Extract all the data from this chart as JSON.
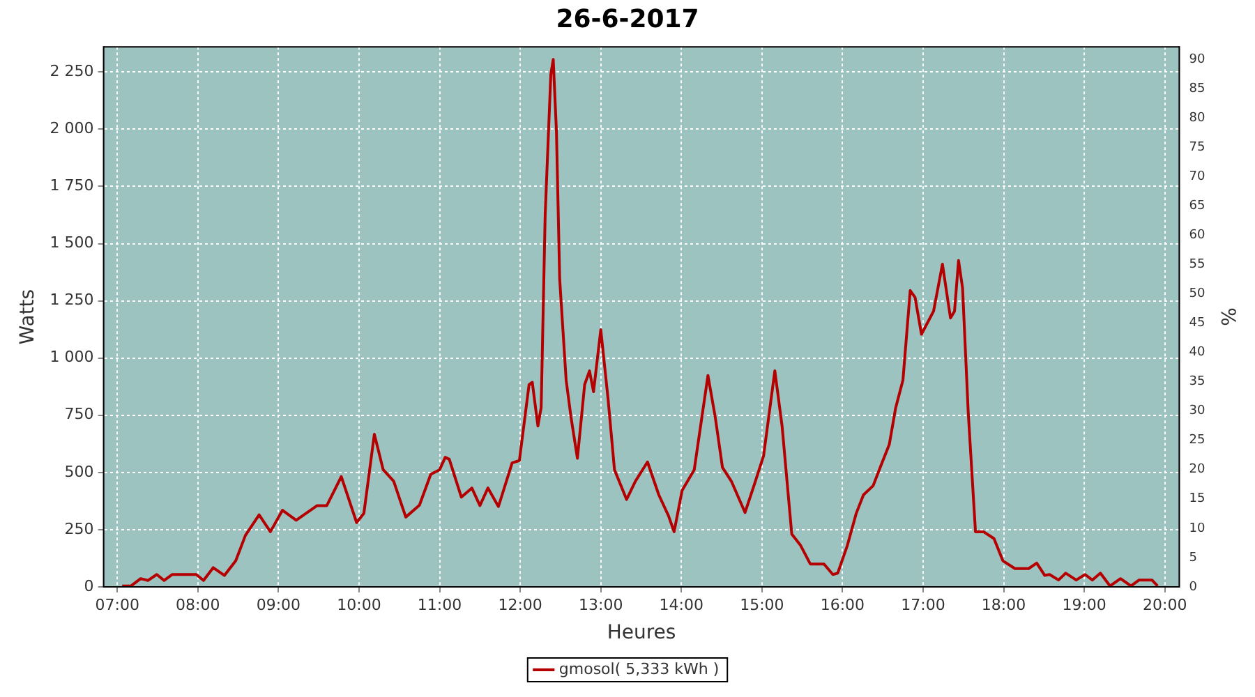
{
  "chart_data": {
    "type": "line",
    "title": "26-6-2017",
    "xlabel": "Heures",
    "ylabel": "Watts",
    "y2label": "%",
    "xlim": [
      6.83,
      20.18
    ],
    "xticks": [
      {
        "value": 7,
        "label": "07:00"
      },
      {
        "value": 8,
        "label": "08:00"
      },
      {
        "value": 9,
        "label": "09:00"
      },
      {
        "value": 10,
        "label": "10:00"
      },
      {
        "value": 11,
        "label": "11:00"
      },
      {
        "value": 12,
        "label": "12:00"
      },
      {
        "value": 13,
        "label": "13:00"
      },
      {
        "value": 14,
        "label": "14:00"
      },
      {
        "value": 15,
        "label": "15:00"
      },
      {
        "value": 16,
        "label": "16:00"
      },
      {
        "value": 17,
        "label": "17:00"
      },
      {
        "value": 18,
        "label": "18:00"
      },
      {
        "value": 19,
        "label": "19:00"
      },
      {
        "value": 20,
        "label": "20:00"
      }
    ],
    "ylim": [
      0,
      2360
    ],
    "yticks": [
      0,
      250,
      500,
      750,
      {
        "value": 1000,
        "label": "1 000"
      },
      {
        "value": 1250,
        "label": "1 250"
      },
      {
        "value": 1500,
        "label": "1 500"
      },
      {
        "value": 1750,
        "label": "1 750"
      },
      {
        "value": 2000,
        "label": "2 000"
      },
      {
        "value": 2250,
        "label": "2 250"
      }
    ],
    "y2lim": [
      0,
      92.1
    ],
    "y2ticks": [
      0,
      5,
      10,
      15,
      20,
      25,
      30,
      35,
      40,
      45,
      50,
      55,
      60,
      65,
      70,
      75,
      80,
      85,
      90
    ],
    "grid": true,
    "legend": "bottom",
    "marker": "none",
    "line_style": "solid",
    "series": [
      {
        "name": "gmosol( 5,333 kWh )",
        "color": "#b40000",
        "x": [
          7.06,
          7.17,
          7.29,
          7.38,
          7.49,
          7.58,
          7.68,
          7.98,
          8.07,
          8.19,
          8.33,
          8.47,
          8.59,
          8.76,
          8.9,
          9.05,
          9.22,
          9.48,
          9.6,
          9.78,
          9.97,
          10.06,
          10.19,
          10.3,
          10.43,
          10.58,
          10.75,
          10.89,
          11.0,
          11.07,
          11.12,
          11.27,
          11.4,
          11.5,
          11.6,
          11.73,
          11.9,
          11.99,
          12.11,
          12.15,
          12.22,
          12.26,
          12.31,
          12.38,
          12.41,
          12.45,
          12.49,
          12.57,
          12.63,
          12.71,
          12.8,
          12.86,
          12.91,
          13.0,
          13.09,
          13.17,
          13.32,
          13.43,
          13.58,
          13.72,
          13.84,
          13.91,
          14.01,
          14.16,
          14.33,
          14.42,
          14.51,
          14.62,
          14.79,
          14.91,
          15.02,
          15.16,
          15.25,
          15.37,
          15.48,
          15.6,
          15.77,
          15.88,
          15.94,
          16.06,
          16.17,
          16.26,
          16.38,
          16.49,
          16.58,
          16.66,
          16.75,
          16.84,
          16.9,
          16.98,
          17.13,
          17.24,
          17.34,
          17.39,
          17.44,
          17.49,
          17.56,
          17.65,
          17.75,
          17.88,
          17.99,
          18.14,
          18.31,
          18.41,
          18.51,
          18.57,
          18.68,
          18.77,
          18.9,
          19.01,
          19.1,
          19.2,
          19.32,
          19.45,
          19.58,
          19.68,
          19.84,
          19.91
        ],
        "values": [
          4,
          4,
          36,
          28,
          54,
          28,
          54,
          54,
          28,
          84,
          50,
          114,
          225,
          315,
          241,
          335,
          291,
          355,
          355,
          482,
          281,
          321,
          667,
          512,
          462,
          305,
          357,
          492,
          512,
          566,
          558,
          392,
          432,
          355,
          432,
          351,
          542,
          552,
          884,
          894,
          703,
          783,
          1626,
          2239,
          2305,
          1988,
          1345,
          904,
          743,
          562,
          884,
          944,
          853,
          1124,
          823,
          512,
          382,
          462,
          546,
          402,
          311,
          241,
          422,
          512,
          924,
          743,
          522,
          462,
          325,
          452,
          572,
          944,
          703,
          231,
          181,
          100,
          100,
          54,
          60,
          181,
          321,
          402,
          442,
          542,
          622,
          783,
          904,
          1295,
          1265,
          1104,
          1205,
          1410,
          1175,
          1205,
          1426,
          1305,
          763,
          241,
          241,
          211,
          114,
          80,
          80,
          104,
          50,
          54,
          30,
          60,
          30,
          54,
          30,
          60,
          4,
          36,
          4,
          30,
          30,
          4
        ]
      }
    ]
  }
}
